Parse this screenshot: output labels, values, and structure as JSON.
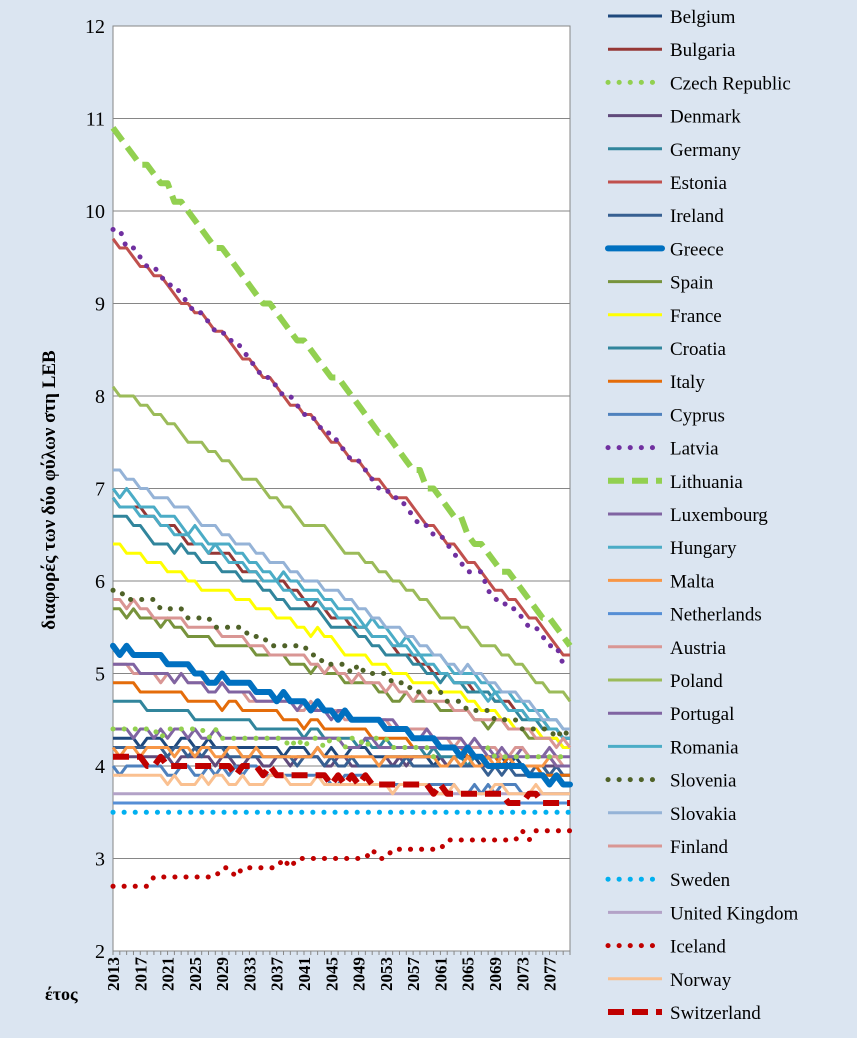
{
  "chart_data": {
    "type": "line",
    "title": "",
    "xlabel": "έτος",
    "ylabel": "διαφορές των δύο φύλων στη LEB",
    "ylim": [
      2,
      12
    ],
    "yticks": [
      "2",
      "3",
      "4",
      "5",
      "6",
      "7",
      "8",
      "9",
      "10",
      "11",
      "12"
    ],
    "xlim": [
      2013,
      2080
    ],
    "xticks": [
      "2013",
      "2017",
      "2021",
      "2025",
      "2029",
      "2033",
      "2037",
      "2041",
      "2045",
      "2049",
      "2053",
      "2057",
      "2061",
      "2065",
      "2069",
      "2073",
      "2077"
    ],
    "grid": true,
    "legend": "right",
    "series": [
      {
        "name": "Belgium",
        "color": "#1f497d",
        "dash": "solid",
        "start": 4.3,
        "end": 4.0
      },
      {
        "name": "Bulgaria",
        "color": "#953735",
        "dash": "solid",
        "start": 6.9,
        "end": 4.3
      },
      {
        "name": "Czech Republic",
        "color": "#92d050",
        "dash": "dots",
        "start": 4.4,
        "end": 4.1
      },
      {
        "name": "Denmark",
        "color": "#604a7b",
        "dash": "solid",
        "start": 4.1,
        "end": 4.0
      },
      {
        "name": "Germany",
        "color": "#31859c",
        "dash": "solid",
        "start": 4.7,
        "end": 3.9
      },
      {
        "name": "Estonia",
        "color": "#c0504d",
        "dash": "solid",
        "start": 9.7,
        "end": 5.2
      },
      {
        "name": "Ireland",
        "color": "#376092",
        "dash": "solid",
        "start": 4.2,
        "end": 3.9
      },
      {
        "name": "Greece",
        "color": "#0070c0",
        "dash": "thick",
        "start": 5.3,
        "end": 3.8
      },
      {
        "name": "Spain",
        "color": "#77933c",
        "dash": "solid",
        "start": 5.7,
        "end": 4.2
      },
      {
        "name": "France",
        "color": "#ffff00",
        "dash": "solid",
        "start": 6.4,
        "end": 4.2
      },
      {
        "name": "Croatia",
        "color": "#31859c",
        "dash": "solid",
        "start": 6.7,
        "end": 4.3
      },
      {
        "name": "Italy",
        "color": "#e46c0a",
        "dash": "solid",
        "start": 4.9,
        "end": 3.9
      },
      {
        "name": "Cyprus",
        "color": "#4f81bd",
        "dash": "solid",
        "start": 4.0,
        "end": 3.7
      },
      {
        "name": "Latvia",
        "color": "#7030a0",
        "dash": "dots",
        "start": 9.8,
        "end": 5.1
      },
      {
        "name": "Lithuania",
        "color": "#92d050",
        "dash": "dashes",
        "start": 10.9,
        "end": 5.3
      },
      {
        "name": "Luxembourg",
        "color": "#8064a2",
        "dash": "solid",
        "start": 4.4,
        "end": 4.1
      },
      {
        "name": "Hungary",
        "color": "#4bacc6",
        "dash": "solid",
        "start": 6.9,
        "end": 4.3
      },
      {
        "name": "Malta",
        "color": "#f79646",
        "dash": "solid",
        "start": 4.2,
        "end": 4.0
      },
      {
        "name": "Netherlands",
        "color": "#558ed5",
        "dash": "solid",
        "start": 3.6,
        "end": 3.6
      },
      {
        "name": "Austria",
        "color": "#d99694",
        "dash": "solid",
        "start": 5.1,
        "end": 4.0
      },
      {
        "name": "Poland",
        "color": "#9bbb59",
        "dash": "solid",
        "start": 8.1,
        "end": 4.7
      },
      {
        "name": "Portugal",
        "color": "#8064a2",
        "dash": "solid",
        "start": 5.1,
        "end": 4.0
      },
      {
        "name": "Romania",
        "color": "#4bacc6",
        "dash": "solid",
        "start": 7.0,
        "end": 4.4
      },
      {
        "name": "Slovenia",
        "color": "#4f6228",
        "dash": "dots",
        "start": 5.9,
        "end": 4.3
      },
      {
        "name": "Slovakia",
        "color": "#95b3d7",
        "dash": "solid",
        "start": 7.2,
        "end": 4.4
      },
      {
        "name": "Finland",
        "color": "#d99694",
        "dash": "solid",
        "start": 5.8,
        "end": 4.2
      },
      {
        "name": "Sweden",
        "color": "#00b0f0",
        "dash": "dots",
        "start": 3.5,
        "end": 3.5
      },
      {
        "name": "United Kingdom",
        "color": "#b3a2c7",
        "dash": "solid",
        "start": 3.7,
        "end": 3.7
      },
      {
        "name": "Iceland",
        "color": "#c00000",
        "dash": "dots",
        "start": 2.7,
        "end": 3.3
      },
      {
        "name": "Norway",
        "color": "#fac090",
        "dash": "solid",
        "start": 3.9,
        "end": 3.7
      },
      {
        "name": "Switzerland",
        "color": "#c00000",
        "dash": "dashes",
        "start": 4.1,
        "end": 3.6
      }
    ]
  }
}
